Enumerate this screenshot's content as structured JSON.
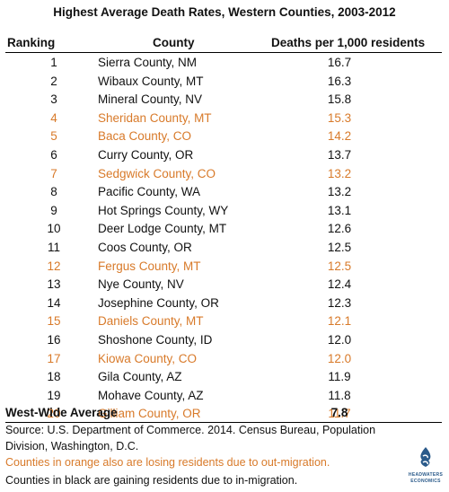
{
  "title": "Highest Average Death Rates, Western Counties, 2003-2012",
  "headers": {
    "rank": "Ranking",
    "county": "County",
    "rate": "Deaths per 1,000 residents"
  },
  "colors": {
    "orange": "#d87a2a",
    "black": "#111111",
    "logo": "#2a5a8a"
  },
  "chart_data": {
    "type": "table",
    "title": "Highest Average Death Rates, Western Counties, 2003-2012",
    "columns": [
      "Ranking",
      "County",
      "Deaths per 1,000 residents"
    ],
    "rows": [
      {
        "rank": "1",
        "county": "Sierra County, NM",
        "rate": "16.7",
        "losing_residents": false
      },
      {
        "rank": "2",
        "county": "Wibaux County, MT",
        "rate": "16.3",
        "losing_residents": false
      },
      {
        "rank": "3",
        "county": "Mineral County, NV",
        "rate": "15.8",
        "losing_residents": false
      },
      {
        "rank": "4",
        "county": "Sheridan County, MT",
        "rate": "15.3",
        "losing_residents": true
      },
      {
        "rank": "5",
        "county": "Baca County, CO",
        "rate": "14.2",
        "losing_residents": true
      },
      {
        "rank": "6",
        "county": "Curry County, OR",
        "rate": "13.7",
        "losing_residents": false
      },
      {
        "rank": "7",
        "county": "Sedgwick County, CO",
        "rate": "13.2",
        "losing_residents": true
      },
      {
        "rank": "8",
        "county": "Pacific County, WA",
        "rate": "13.2",
        "losing_residents": false
      },
      {
        "rank": "9",
        "county": "Hot Springs County, WY",
        "rate": "13.1",
        "losing_residents": false
      },
      {
        "rank": "10",
        "county": "Deer Lodge County, MT",
        "rate": "12.6",
        "losing_residents": false
      },
      {
        "rank": "11",
        "county": "Coos County, OR",
        "rate": "12.5",
        "losing_residents": false
      },
      {
        "rank": "12",
        "county": "Fergus County, MT",
        "rate": "12.5",
        "losing_residents": true
      },
      {
        "rank": "13",
        "county": "Nye County, NV",
        "rate": "12.4",
        "losing_residents": false
      },
      {
        "rank": "14",
        "county": "Josephine County, OR",
        "rate": "12.3",
        "losing_residents": false
      },
      {
        "rank": "15",
        "county": "Daniels County, MT",
        "rate": "12.1",
        "losing_residents": true
      },
      {
        "rank": "16",
        "county": "Shoshone County, ID",
        "rate": "12.0",
        "losing_residents": false
      },
      {
        "rank": "17",
        "county": "Kiowa County, CO",
        "rate": "12.0",
        "losing_residents": true
      },
      {
        "rank": "18",
        "county": "Gila County, AZ",
        "rate": "11.9",
        "losing_residents": false
      },
      {
        "rank": "19",
        "county": "Mohave County, AZ",
        "rate": "11.8",
        "losing_residents": false
      },
      {
        "rank": "20",
        "county": "Gilliam County, OR",
        "rate": "11.7",
        "losing_residents": true
      }
    ],
    "summary": {
      "label": "West-Wide Average",
      "value": "7.8"
    }
  },
  "notes": {
    "source": "Source: U.S. Department of Commerce. 2014. Census Bureau, Population Division, Washington, D.C.",
    "orange": "Counties in orange also are losing residents due to out-migration.",
    "black": "Counties in black are gaining residents due to in-migration."
  },
  "logo": {
    "line1": "HEADWATERS",
    "line2": "ECONOMICS"
  }
}
